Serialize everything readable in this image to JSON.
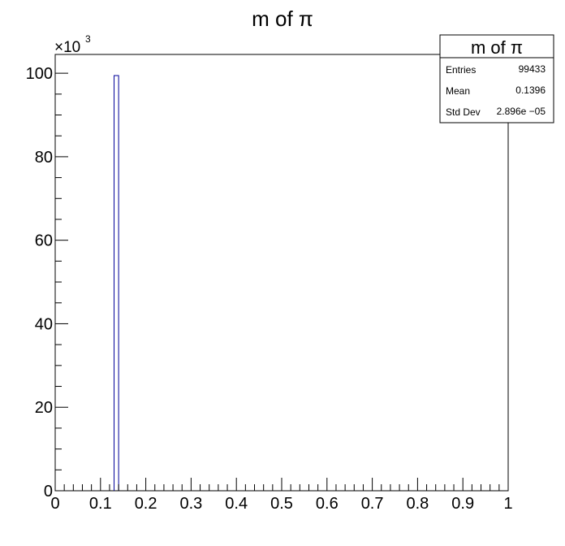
{
  "chart_data": {
    "type": "bar",
    "title": "m of π",
    "xlabel": "",
    "ylabel": "",
    "xlim": [
      0,
      1
    ],
    "ylim": [
      0,
      104.5
    ],
    "y_multiplier_base": "×10",
    "y_multiplier_exp": "3",
    "x_ticks": [
      "0",
      "0.1",
      "0.2",
      "0.3",
      "0.4",
      "0.5",
      "0.6",
      "0.7",
      "0.8",
      "0.9",
      "1"
    ],
    "y_ticks": [
      "0",
      "20",
      "40",
      "60",
      "80",
      "100"
    ],
    "bins": [
      {
        "x_low": 0.13,
        "x_high": 0.14,
        "value": 99.433
      }
    ],
    "line_color": "#000099",
    "grid": false,
    "stats_box": {
      "title": "m of π",
      "placement": "top-right",
      "rows": [
        {
          "label": "Entries",
          "value": "99433"
        },
        {
          "label": "Mean",
          "value": "0.1396"
        },
        {
          "label": "Std Dev",
          "value": "2.896e −05"
        }
      ]
    }
  }
}
